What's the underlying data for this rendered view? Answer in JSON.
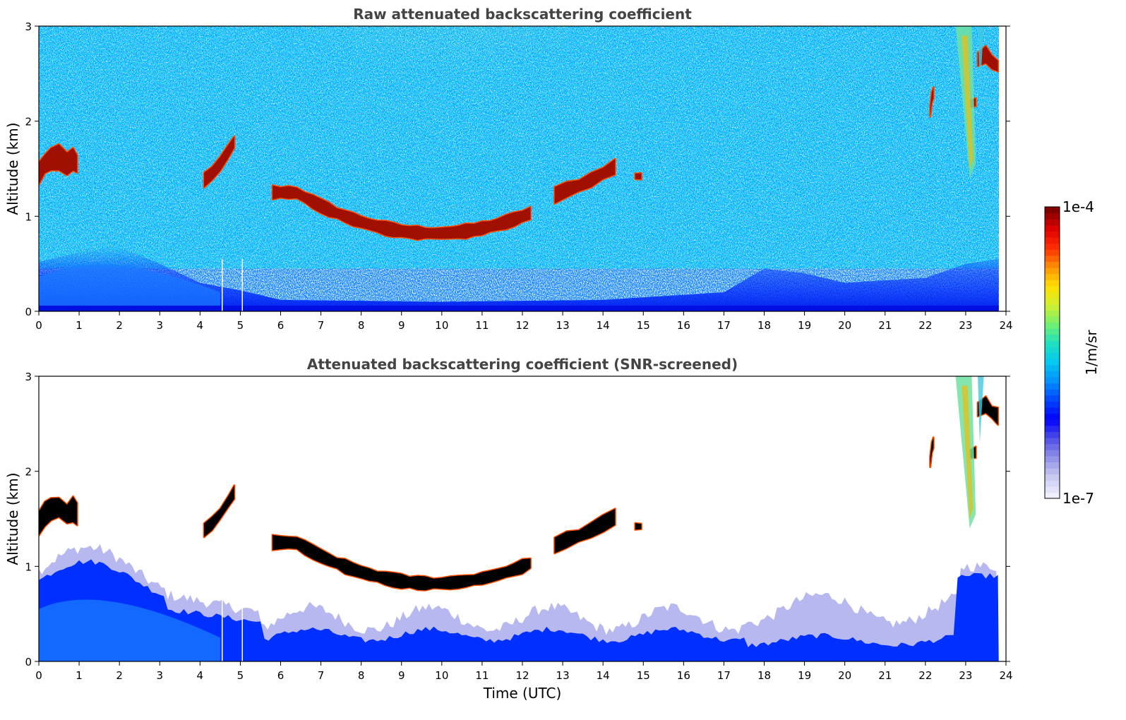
{
  "chart_data": [
    {
      "type": "heatmap",
      "title": "Raw attenuated backscattering coefficient",
      "ylabel": "Altitude (km)",
      "xlabel": "",
      "xlim": [
        0,
        24
      ],
      "ylim": [
        0,
        3
      ],
      "xticks": [
        "0",
        "1",
        "2",
        "3",
        "4",
        "5",
        "6",
        "7",
        "8",
        "9",
        "10",
        "11",
        "12",
        "13",
        "14",
        "15",
        "16",
        "17",
        "18",
        "19",
        "20",
        "21",
        "22",
        "23",
        "24"
      ],
      "yticks": [
        "0",
        "1",
        "2",
        "3"
      ],
      "features": [
        {
          "name": "boundary layer",
          "x": [
            0,
            23.8
          ],
          "y": [
            0,
            0.45
          ]
        },
        {
          "name": "cloud",
          "x": [
            0,
            0.95
          ],
          "y": [
            1.3,
            1.9
          ]
        },
        {
          "name": "cloud",
          "x": [
            4.1,
            4.85
          ],
          "y": [
            1.3,
            1.8
          ]
        },
        {
          "name": "cloud",
          "x": [
            5.8,
            12.3
          ],
          "y": [
            0.75,
            1.3
          ]
        },
        {
          "name": "cloud",
          "x": [
            12.8,
            14.3
          ],
          "y": [
            1.2,
            1.6
          ]
        },
        {
          "name": "cloud",
          "x": [
            22.1,
            22.2
          ],
          "y": [
            2.05,
            2.35
          ]
        },
        {
          "name": "precipitation streak",
          "x": [
            22.8,
            23.5
          ],
          "y": [
            1.45,
            3.0
          ]
        },
        {
          "name": "cloud",
          "x": [
            23.3,
            23.8
          ],
          "y": [
            2.5,
            2.8
          ]
        }
      ]
    },
    {
      "type": "heatmap",
      "title": "Attenuated backscattering coefficient (SNR-screened)",
      "ylabel": "Altitude (km)",
      "xlabel": "Time (UTC)",
      "xlim": [
        0,
        24
      ],
      "ylim": [
        0,
        3
      ],
      "xticks": [
        "0",
        "1",
        "2",
        "3",
        "4",
        "5",
        "6",
        "7",
        "8",
        "9",
        "10",
        "11",
        "12",
        "13",
        "14",
        "15",
        "16",
        "17",
        "18",
        "19",
        "20",
        "21",
        "22",
        "23",
        "24"
      ],
      "yticks": [
        "0",
        "1",
        "2",
        "3"
      ],
      "features": [
        {
          "name": "boundary layer",
          "x": [
            0,
            23.8
          ],
          "y": [
            0,
            1.0
          ]
        },
        {
          "name": "cloud",
          "x": [
            0,
            0.95
          ],
          "y": [
            1.3,
            1.9
          ]
        },
        {
          "name": "cloud",
          "x": [
            4.1,
            4.85
          ],
          "y": [
            1.3,
            1.8
          ]
        },
        {
          "name": "cloud",
          "x": [
            5.8,
            12.3
          ],
          "y": [
            0.75,
            1.3
          ]
        },
        {
          "name": "cloud",
          "x": [
            12.8,
            14.3
          ],
          "y": [
            1.2,
            1.6
          ]
        },
        {
          "name": "cloud",
          "x": [
            22.1,
            22.2
          ],
          "y": [
            2.05,
            2.35
          ]
        },
        {
          "name": "precipitation streak",
          "x": [
            22.8,
            23.5
          ],
          "y": [
            1.4,
            3.0
          ]
        },
        {
          "name": "cloud",
          "x": [
            23.3,
            23.8
          ],
          "y": [
            2.5,
            2.8
          ]
        }
      ]
    }
  ],
  "colorbar": {
    "label": "1/m/sr",
    "min_label": "1e-7",
    "max_label": "1e-4",
    "colormap": [
      "#eeeeff",
      "#c8c8f0",
      "#9090e8",
      "#5050e8",
      "#0000ff",
      "#0044ff",
      "#0090ff",
      "#00c8f0",
      "#20e0c0",
      "#70f070",
      "#d0f030",
      "#ffe000",
      "#ff9000",
      "#ff3000",
      "#e00000",
      "#800000"
    ]
  },
  "colors": {
    "cloud_core": "#a01000",
    "cloud_edge": "#ff5000",
    "screened_core": "#000000",
    "blue_low": "#0030ff",
    "blue_mid": "#1a7cff"
  }
}
